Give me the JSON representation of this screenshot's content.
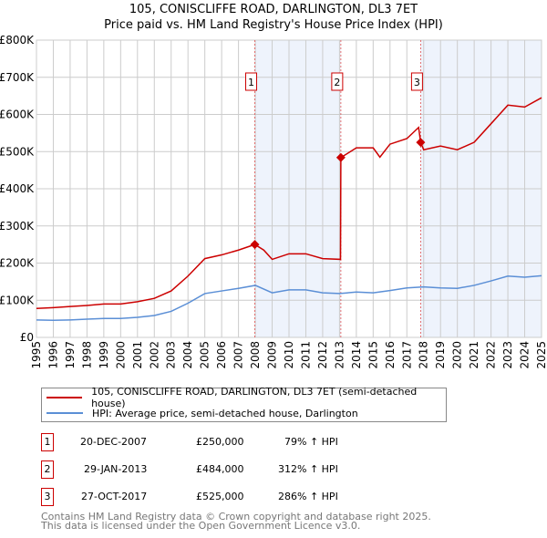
{
  "title": "105, CONISCLIFFE ROAD, DARLINGTON, DL3 7ET",
  "subtitle": "Price paid vs. HM Land Registry's House Price Index (HPI)",
  "chart_data": {
    "type": "line",
    "ylim": [
      0,
      800000
    ],
    "xlim": [
      1995,
      2025
    ],
    "yticks": [
      {
        "v": 0,
        "label": "£0"
      },
      {
        "v": 100000,
        "label": "£100K"
      },
      {
        "v": 200000,
        "label": "£200K"
      },
      {
        "v": 300000,
        "label": "£300K"
      },
      {
        "v": 400000,
        "label": "£400K"
      },
      {
        "v": 500000,
        "label": "£500K"
      },
      {
        "v": 600000,
        "label": "£600K"
      },
      {
        "v": 700000,
        "label": "£700K"
      },
      {
        "v": 800000,
        "label": "£800K"
      }
    ],
    "xticks": [
      "1995",
      "1996",
      "1997",
      "1998",
      "1999",
      "2000",
      "2001",
      "2002",
      "2003",
      "2004",
      "2005",
      "2006",
      "2007",
      "2008",
      "2009",
      "2010",
      "2011",
      "2012",
      "2013",
      "2014",
      "2015",
      "2016",
      "2017",
      "2018",
      "2019",
      "2020",
      "2021",
      "2022",
      "2023",
      "2024",
      "2025"
    ],
    "grid": true,
    "shaded_ranges": [
      [
        2007.97,
        2013.08
      ],
      [
        2017.82,
        2025
      ]
    ],
    "series": [
      {
        "name": "105, CONISCLIFFE ROAD, DARLINGTON, DL3 7ET (semi-detached house)",
        "color": "#cc0000",
        "x": [
          1995,
          1996,
          1997,
          1998,
          1999,
          2000,
          2001,
          2002,
          2003,
          2004,
          2005,
          2006,
          2007,
          2007.97,
          2008.5,
          2009,
          2010,
          2011,
          2012,
          2013.06,
          2013.08,
          2014,
          2015,
          2015.4,
          2016,
          2017,
          2017.7,
          2017.82,
          2018,
          2019,
          2020,
          2021,
          2022,
          2023,
          2024,
          2025
        ],
        "y": [
          78000,
          80000,
          83000,
          86000,
          90000,
          90000,
          96000,
          105000,
          125000,
          165000,
          212000,
          222000,
          235000,
          250000,
          235000,
          210000,
          225000,
          225000,
          212000,
          210000,
          484000,
          510000,
          510000,
          485000,
          520000,
          535000,
          565000,
          525000,
          505000,
          515000,
          505000,
          525000,
          575000,
          625000,
          620000,
          645000
        ]
      },
      {
        "name": "HPI: Average price, semi-detached house, Darlington",
        "color": "#5b8fd6",
        "x": [
          1995,
          1996,
          1997,
          1998,
          1999,
          2000,
          2001,
          2002,
          2003,
          2004,
          2005,
          2006,
          2007,
          2008,
          2009,
          2010,
          2011,
          2012,
          2013,
          2014,
          2015,
          2016,
          2017,
          2018,
          2019,
          2020,
          2021,
          2022,
          2023,
          2024,
          2025
        ],
        "y": [
          47000,
          46000,
          47000,
          49000,
          51000,
          51000,
          54000,
          59000,
          70000,
          92000,
          118000,
          125000,
          132000,
          140000,
          120000,
          128000,
          128000,
          120000,
          118000,
          122000,
          120000,
          126000,
          133000,
          136000,
          133000,
          132000,
          140000,
          152000,
          165000,
          162000,
          166000
        ]
      }
    ],
    "sales": [
      {
        "n": "1",
        "x": 2007.97,
        "y": 250000
      },
      {
        "n": "2",
        "x": 2013.08,
        "y": 484000
      },
      {
        "n": "3",
        "x": 2017.82,
        "y": 525000
      }
    ],
    "legend_placement": "bottom"
  },
  "legend": [
    "105, CONISCLIFFE ROAD, DARLINGTON, DL3 7ET (semi-detached house)",
    "HPI: Average price, semi-detached house, Darlington"
  ],
  "transactions": [
    {
      "n": "1",
      "date": "20-DEC-2007",
      "price": "£250,000",
      "hpi": "79% ↑ HPI"
    },
    {
      "n": "2",
      "date": "29-JAN-2013",
      "price": "£484,000",
      "hpi": "312% ↑ HPI"
    },
    {
      "n": "3",
      "date": "27-OCT-2017",
      "price": "£525,000",
      "hpi": "286% ↑ HPI"
    }
  ],
  "footer": [
    "Contains HM Land Registry data © Crown copyright and database right 2025.",
    "This data is licensed under the Open Government Licence v3.0."
  ]
}
